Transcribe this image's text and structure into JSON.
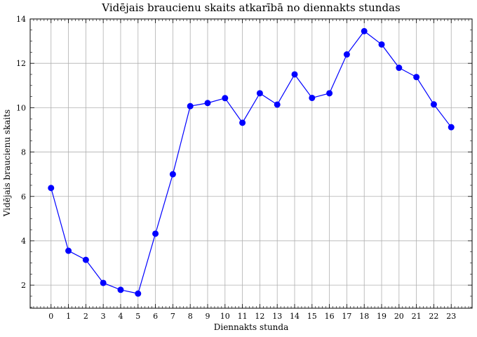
{
  "chart_data": {
    "type": "line",
    "title": "Vidējais braucienu skaits atkarībā no diennakts stundas",
    "xlabel": "Diennakts stunda",
    "ylabel": "Vidējais braucienu skaits",
    "x": [
      0,
      1,
      2,
      3,
      4,
      5,
      6,
      7,
      8,
      9,
      10,
      11,
      12,
      13,
      14,
      15,
      16,
      17,
      18,
      19,
      20,
      21,
      22,
      23
    ],
    "series": [
      {
        "values": [
          6.38,
          3.55,
          3.14,
          2.1,
          1.79,
          1.62,
          4.32,
          7.0,
          10.07,
          10.21,
          10.43,
          9.32,
          10.65,
          10.14,
          11.5,
          10.44,
          10.65,
          12.4,
          13.45,
          12.85,
          11.8,
          11.38,
          10.15,
          9.12
        ],
        "color": "#0000ff"
      }
    ],
    "xlim": [
      -1.2,
      24.2
    ],
    "ylim": [
      0.96,
      14.0
    ],
    "x_ticks": [
      "0",
      "1",
      "2",
      "3",
      "4",
      "5",
      "6",
      "7",
      "8",
      "9",
      "10",
      "11",
      "12",
      "13",
      "14",
      "15",
      "16",
      "17",
      "18",
      "19",
      "20",
      "21",
      "22",
      "23"
    ],
    "y_ticks": [
      "2",
      "4",
      "6",
      "8",
      "10",
      "12",
      "14"
    ],
    "grid": true
  }
}
